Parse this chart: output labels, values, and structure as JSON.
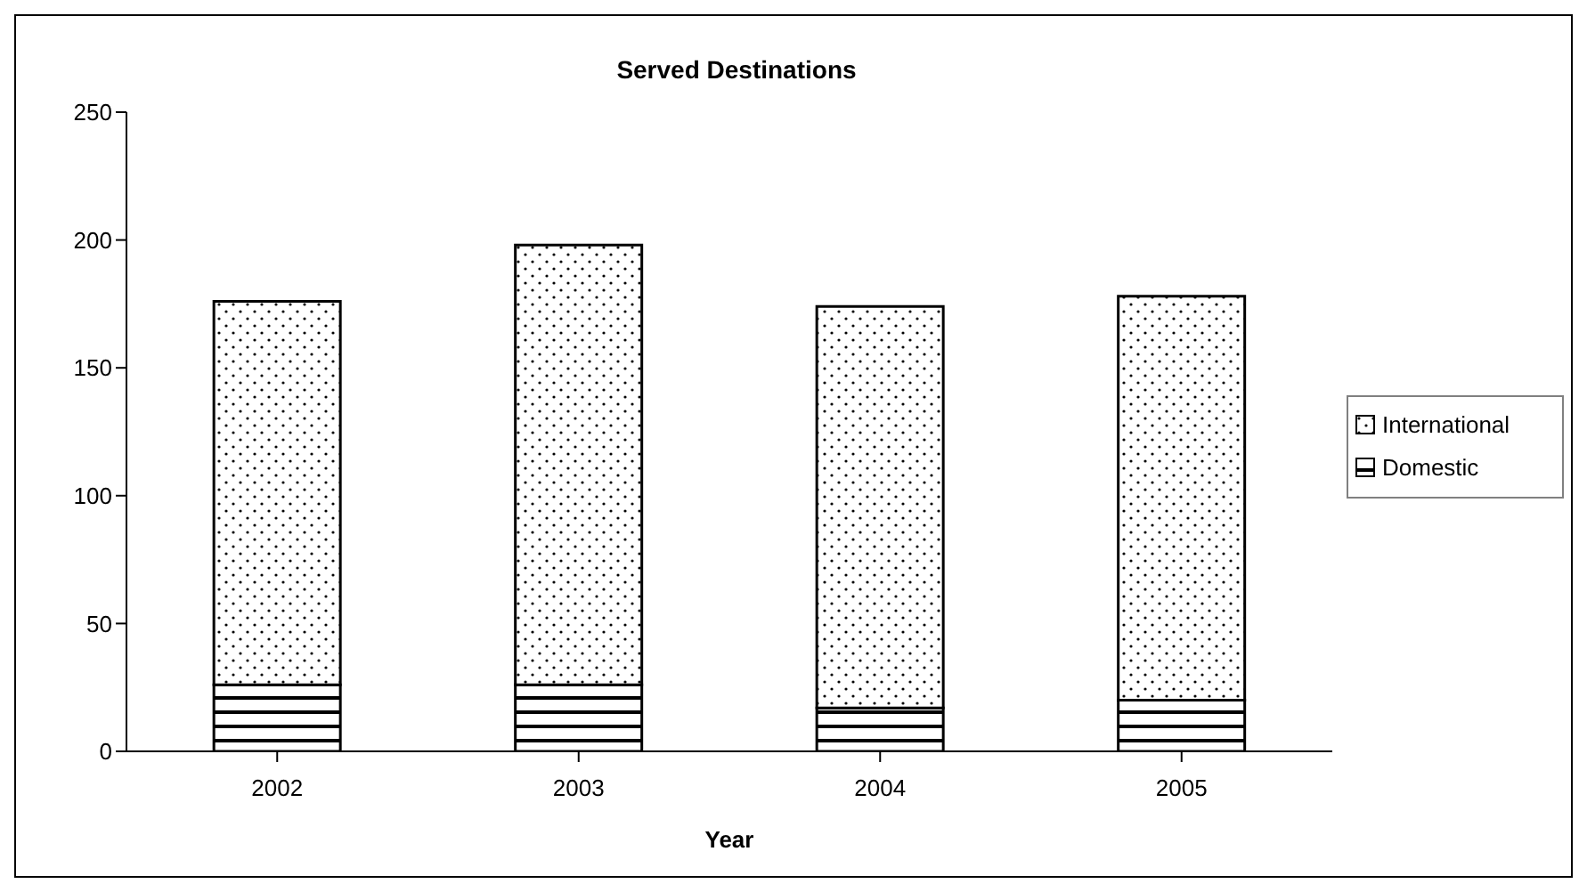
{
  "chart_data": {
    "type": "bar",
    "title": "Served Destinations",
    "xlabel": "Year",
    "categories": [
      "2002",
      "2003",
      "2004",
      "2005"
    ],
    "stacked": true,
    "legend": "right",
    "ylim": [
      0,
      250
    ],
    "yticks": [
      0,
      50,
      100,
      150,
      200,
      250
    ],
    "grid": false,
    "series": [
      {
        "name": "Domestic",
        "color": "#000000",
        "values": [
          26,
          26,
          17,
          20
        ]
      },
      {
        "name": "International",
        "color": "#000000",
        "values": [
          150,
          172,
          157,
          158
        ]
      }
    ]
  }
}
